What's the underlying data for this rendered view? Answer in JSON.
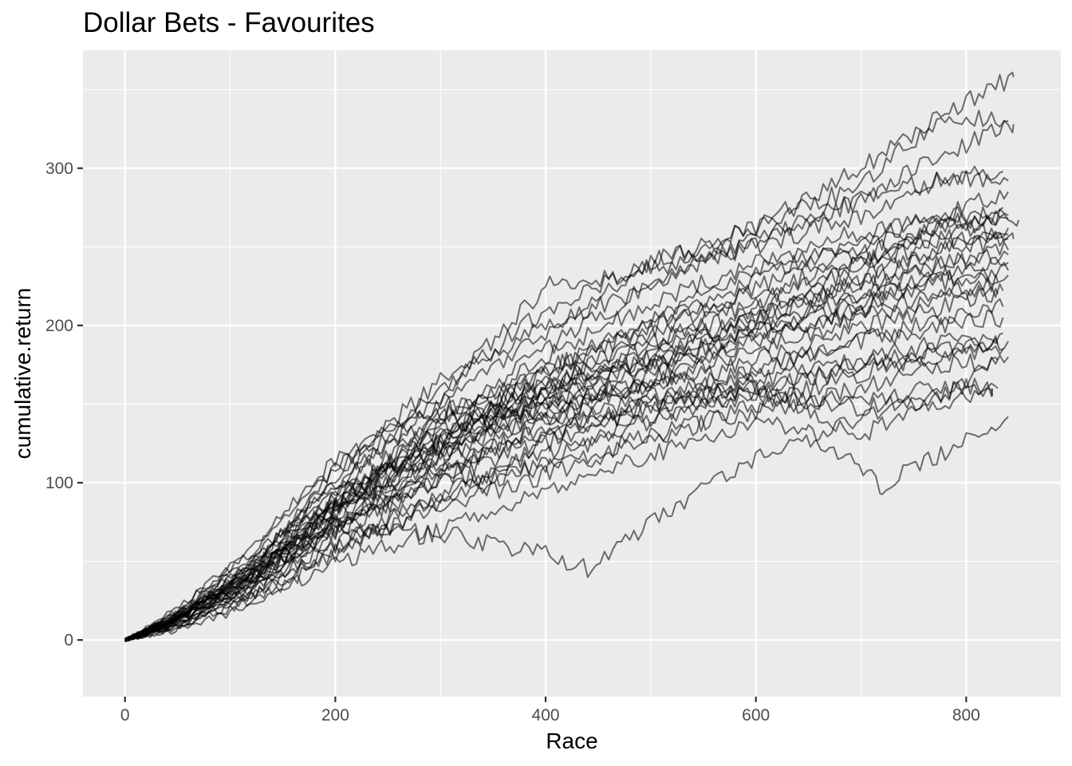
{
  "chart_data": {
    "type": "line",
    "title": "Dollar Bets - Favourites",
    "xlabel": "Race",
    "ylabel": "cumulative.return",
    "xlim": [
      -40,
      890
    ],
    "ylim": [
      -36,
      375
    ],
    "x_ticks": [
      0,
      200,
      400,
      600,
      800
    ],
    "x_tick_labels": [
      "0",
      "200",
      "400",
      "600",
      "800"
    ],
    "y_ticks": [
      0,
      100,
      200,
      300
    ],
    "y_tick_labels": [
      "0",
      "100",
      "200",
      "300"
    ],
    "x_minor": [
      100,
      300,
      500,
      700
    ],
    "y_minor": [
      50,
      150,
      250,
      350
    ],
    "grid": true,
    "legend": "none",
    "line_color": "#000000",
    "line_opacity": 0.55,
    "series_anchors": "x: race numbers; y: cumulative return at the anchor races",
    "series": [
      {
        "x": [
          0,
          40,
          120,
          200,
          300,
          400,
          500,
          600,
          700,
          780,
          845
        ],
        "y": [
          0,
          10,
          48,
          102,
          160,
          210,
          240,
          262,
          300,
          335,
          358
        ]
      },
      {
        "x": [
          0,
          40,
          120,
          200,
          300,
          400,
          500,
          600,
          700,
          780,
          840
        ],
        "y": [
          0,
          14,
          52,
          98,
          150,
          195,
          240,
          262,
          290,
          335,
          330
        ]
      },
      {
        "x": [
          0,
          40,
          120,
          200,
          300,
          400,
          500,
          600,
          700,
          780,
          845
        ],
        "y": [
          0,
          12,
          44,
          90,
          140,
          185,
          225,
          255,
          280,
          310,
          328
        ]
      },
      {
        "x": [
          0,
          40,
          120,
          200,
          300,
          400,
          500,
          600,
          700,
          780,
          835
        ],
        "y": [
          0,
          16,
          55,
          110,
          155,
          225,
          235,
          250,
          270,
          295,
          298
        ]
      },
      {
        "x": [
          0,
          40,
          120,
          200,
          300,
          400,
          500,
          600,
          700,
          780,
          850
        ],
        "y": [
          0,
          10,
          40,
          85,
          135,
          180,
          215,
          240,
          260,
          270,
          267
        ]
      },
      {
        "x": [
          0,
          40,
          120,
          200,
          300,
          400,
          500,
          600,
          700,
          780,
          840
        ],
        "y": [
          0,
          12,
          45,
          95,
          140,
          170,
          200,
          230,
          255,
          270,
          285
        ]
      },
      {
        "x": [
          0,
          40,
          120,
          200,
          300,
          400,
          500,
          600,
          700,
          780,
          840
        ],
        "y": [
          0,
          8,
          35,
          75,
          118,
          160,
          195,
          225,
          245,
          265,
          270
        ]
      },
      {
        "x": [
          0,
          40,
          120,
          200,
          300,
          400,
          500,
          600,
          700,
          780,
          840
        ],
        "y": [
          0,
          11,
          42,
          88,
          130,
          165,
          190,
          215,
          240,
          258,
          262
        ]
      },
      {
        "x": [
          0,
          40,
          120,
          200,
          300,
          400,
          500,
          600,
          700,
          780,
          840
        ],
        "y": [
          0,
          9,
          38,
          80,
          122,
          150,
          180,
          205,
          228,
          250,
          255
        ]
      },
      {
        "x": [
          0,
          40,
          120,
          200,
          300,
          400,
          500,
          600,
          700,
          780,
          840
        ],
        "y": [
          0,
          13,
          50,
          100,
          145,
          160,
          175,
          200,
          220,
          240,
          248
        ]
      },
      {
        "x": [
          0,
          40,
          120,
          200,
          300,
          400,
          500,
          600,
          700,
          780,
          840
        ],
        "y": [
          0,
          10,
          40,
          78,
          115,
          145,
          172,
          198,
          218,
          232,
          240
        ]
      },
      {
        "x": [
          0,
          40,
          120,
          200,
          300,
          400,
          500,
          600,
          700,
          780,
          830
        ],
        "y": [
          0,
          7,
          30,
          68,
          105,
          140,
          165,
          190,
          210,
          222,
          228
        ]
      },
      {
        "x": [
          0,
          40,
          120,
          200,
          300,
          400,
          500,
          600,
          700,
          780,
          830
        ],
        "y": [
          0,
          12,
          46,
          92,
          135,
          150,
          160,
          178,
          198,
          212,
          220
        ]
      },
      {
        "x": [
          0,
          40,
          120,
          200,
          300,
          400,
          500,
          600,
          700,
          780,
          835
        ],
        "y": [
          0,
          9,
          36,
          72,
          110,
          135,
          150,
          170,
          190,
          205,
          212
        ]
      },
      {
        "x": [
          0,
          40,
          120,
          200,
          300,
          400,
          500,
          600,
          700,
          780,
          840
        ],
        "y": [
          0,
          14,
          58,
          115,
          150,
          140,
          150,
          160,
          175,
          185,
          190
        ]
      },
      {
        "x": [
          0,
          40,
          120,
          200,
          300,
          400,
          500,
          600,
          700,
          780,
          835
        ],
        "y": [
          0,
          6,
          28,
          60,
          92,
          120,
          140,
          160,
          172,
          182,
          185
        ]
      },
      {
        "x": [
          0,
          40,
          120,
          200,
          300,
          400,
          500,
          600,
          700,
          780,
          830
        ],
        "y": [
          0,
          10,
          38,
          70,
          100,
          110,
          130,
          145,
          160,
          175,
          178
        ]
      },
      {
        "x": [
          0,
          40,
          120,
          200,
          300,
          400,
          500,
          600,
          700,
          780,
          830
        ],
        "y": [
          0,
          8,
          32,
          62,
          90,
          125,
          150,
          158,
          150,
          162,
          160
        ]
      },
      {
        "x": [
          0,
          40,
          120,
          200,
          300,
          400,
          500,
          600,
          700,
          780,
          825
        ],
        "y": [
          0,
          5,
          22,
          55,
          88,
          115,
          140,
          155,
          148,
          152,
          155
        ]
      },
      {
        "x": [
          0,
          40,
          120,
          200,
          300,
          400,
          500,
          600,
          700,
          760,
          840
        ],
        "y": [
          0,
          11,
          42,
          82,
          120,
          150,
          165,
          160,
          130,
          150,
          180
        ]
      },
      {
        "x": [
          0,
          40,
          120,
          200,
          300,
          400,
          440,
          500,
          600,
          700,
          780,
          825
        ],
        "y": [
          0,
          9,
          35,
          72,
          68,
          55,
          45,
          75,
          115,
          140,
          158,
          160
        ]
      },
      {
        "x": [
          0,
          40,
          120,
          200,
          300,
          400,
          500,
          600,
          650,
          720,
          780,
          840
        ],
        "y": [
          0,
          6,
          25,
          48,
          70,
          95,
          118,
          138,
          132,
          98,
          120,
          142
        ]
      },
      {
        "x": [
          0,
          40,
          120,
          200,
          300,
          400,
          500,
          600,
          700,
          780,
          840
        ],
        "y": [
          0,
          10,
          45,
          108,
          165,
          200,
          225,
          255,
          280,
          295,
          292
        ]
      },
      {
        "x": [
          0,
          40,
          120,
          200,
          300,
          400,
          500,
          600,
          700,
          780,
          835
        ],
        "y": [
          0,
          13,
          48,
          90,
          128,
          170,
          205,
          235,
          250,
          262,
          275
        ]
      },
      {
        "x": [
          0,
          40,
          120,
          200,
          300,
          400,
          500,
          600,
          700,
          780,
          840
        ],
        "y": [
          0,
          11,
          40,
          84,
          125,
          158,
          188,
          210,
          238,
          255,
          258
        ]
      },
      {
        "x": [
          0,
          40,
          120,
          200,
          300,
          400,
          500,
          600,
          700,
          780,
          840
        ],
        "y": [
          0,
          7,
          33,
          74,
          112,
          140,
          170,
          192,
          212,
          228,
          235
        ]
      },
      {
        "x": [
          0,
          40,
          120,
          200,
          300,
          400,
          500,
          600,
          700,
          780,
          835
        ],
        "y": [
          0,
          12,
          42,
          80,
          118,
          148,
          162,
          185,
          205,
          218,
          222
        ]
      },
      {
        "x": [
          0,
          40,
          120,
          200,
          300,
          400,
          500,
          600,
          700,
          780,
          835
        ],
        "y": [
          0,
          9,
          37,
          76,
          108,
          130,
          155,
          172,
          190,
          200,
          205
        ]
      },
      {
        "x": [
          0,
          40,
          120,
          200,
          300,
          400,
          500,
          600,
          700,
          780,
          840
        ],
        "y": [
          0,
          10,
          39,
          83,
          126,
          155,
          176,
          196,
          214,
          230,
          232
        ]
      },
      {
        "x": [
          0,
          40,
          120,
          200,
          300,
          400,
          500,
          600,
          700,
          780,
          840
        ],
        "y": [
          0,
          12,
          44,
          87,
          132,
          162,
          185,
          205,
          225,
          240,
          245
        ]
      },
      {
        "x": [
          0,
          40,
          120,
          200,
          300,
          400,
          500,
          600,
          700,
          780,
          835
        ],
        "y": [
          0,
          8,
          34,
          70,
          102,
          128,
          148,
          165,
          178,
          190,
          195
        ]
      },
      {
        "x": [
          0,
          40,
          120,
          200,
          300,
          400,
          500,
          600,
          700,
          780,
          840
        ],
        "y": [
          0,
          11,
          43,
          86,
          128,
          172,
          198,
          222,
          240,
          262,
          268
        ]
      },
      {
        "x": [
          0,
          40,
          120,
          200,
          300,
          400,
          500,
          600,
          700,
          780,
          830
        ],
        "y": [
          0,
          6,
          27,
          58,
          85,
          105,
          128,
          150,
          170,
          185,
          188
        ]
      },
      {
        "x": [
          0,
          40,
          120,
          200,
          300,
          400,
          500,
          600,
          700,
          780,
          845
        ],
        "y": [
          0,
          10,
          41,
          84,
          125,
          158,
          180,
          205,
          230,
          250,
          255
        ]
      }
    ]
  }
}
